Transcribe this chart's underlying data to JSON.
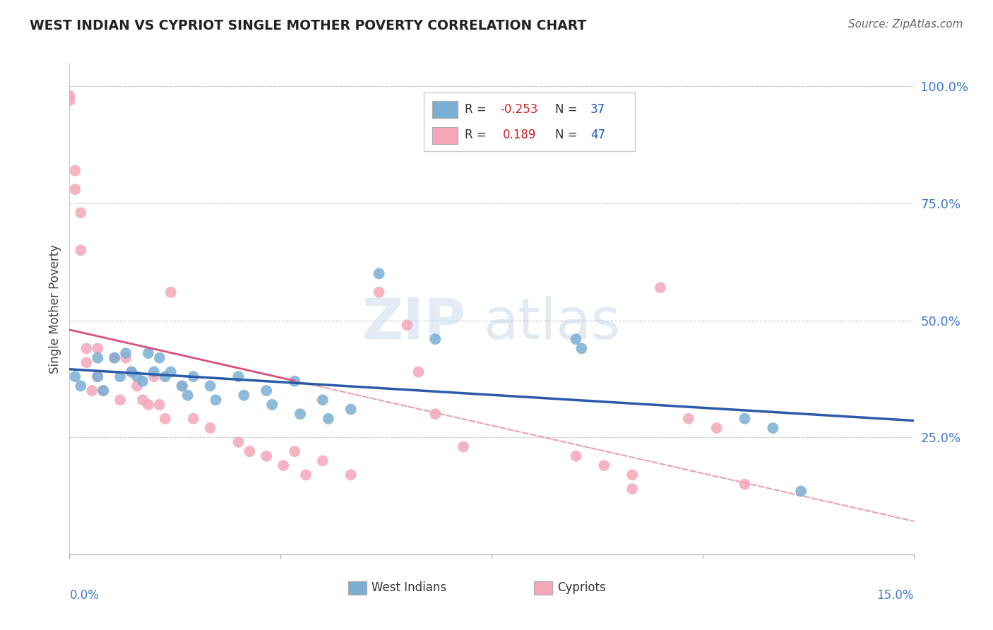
{
  "title": "WEST INDIAN VS CYPRIOT SINGLE MOTHER POVERTY CORRELATION CHART",
  "source": "Source: ZipAtlas.com",
  "ylabel": "Single Mother Poverty",
  "xmin": 0.0,
  "xmax": 0.15,
  "ymin": 0.0,
  "ymax": 1.05,
  "right_yticks": [
    "100.0%",
    "75.0%",
    "50.0%",
    "25.0%"
  ],
  "right_ytick_vals": [
    1.0,
    0.75,
    0.5,
    0.25
  ],
  "blue_color": "#7BAFD4",
  "pink_color": "#F4A7B9",
  "blue_line_color": "#2B5BA8",
  "pink_line_color": "#D94F7A",
  "pink_dash_color": "#E8A0B0",
  "legend_blue_r": "-0.253",
  "legend_blue_n": "37",
  "legend_pink_r": "0.189",
  "legend_pink_n": "47",
  "west_indian_x": [
    0.001,
    0.002,
    0.005,
    0.005,
    0.006,
    0.008,
    0.009,
    0.01,
    0.011,
    0.012,
    0.013,
    0.014,
    0.015,
    0.016,
    0.017,
    0.018,
    0.02,
    0.021,
    0.022,
    0.025,
    0.026,
    0.03,
    0.031,
    0.035,
    0.036,
    0.04,
    0.041,
    0.045,
    0.046,
    0.05,
    0.055,
    0.065,
    0.09,
    0.091,
    0.12,
    0.125,
    0.13
  ],
  "west_indian_y": [
    0.38,
    0.36,
    0.42,
    0.38,
    0.35,
    0.42,
    0.38,
    0.43,
    0.39,
    0.38,
    0.37,
    0.43,
    0.39,
    0.42,
    0.38,
    0.39,
    0.36,
    0.34,
    0.38,
    0.36,
    0.33,
    0.38,
    0.34,
    0.35,
    0.32,
    0.37,
    0.3,
    0.33,
    0.29,
    0.31,
    0.6,
    0.46,
    0.46,
    0.44,
    0.29,
    0.27,
    0.135
  ],
  "cypriot_x": [
    0.0,
    0.0,
    0.001,
    0.001,
    0.002,
    0.002,
    0.003,
    0.003,
    0.004,
    0.005,
    0.005,
    0.006,
    0.008,
    0.009,
    0.01,
    0.011,
    0.012,
    0.013,
    0.014,
    0.015,
    0.016,
    0.017,
    0.018,
    0.02,
    0.022,
    0.025,
    0.03,
    0.032,
    0.035,
    0.038,
    0.04,
    0.042,
    0.045,
    0.05,
    0.055,
    0.06,
    0.062,
    0.065,
    0.07,
    0.09,
    0.095,
    0.1,
    0.1,
    0.105,
    0.11,
    0.115,
    0.12
  ],
  "cypriot_y": [
    0.98,
    0.97,
    0.82,
    0.78,
    0.73,
    0.65,
    0.44,
    0.41,
    0.35,
    0.44,
    0.38,
    0.35,
    0.42,
    0.33,
    0.42,
    0.39,
    0.36,
    0.33,
    0.32,
    0.38,
    0.32,
    0.29,
    0.56,
    0.36,
    0.29,
    0.27,
    0.24,
    0.22,
    0.21,
    0.19,
    0.22,
    0.17,
    0.2,
    0.17,
    0.56,
    0.49,
    0.39,
    0.3,
    0.23,
    0.21,
    0.19,
    0.17,
    0.14,
    0.57,
    0.29,
    0.27,
    0.15
  ]
}
